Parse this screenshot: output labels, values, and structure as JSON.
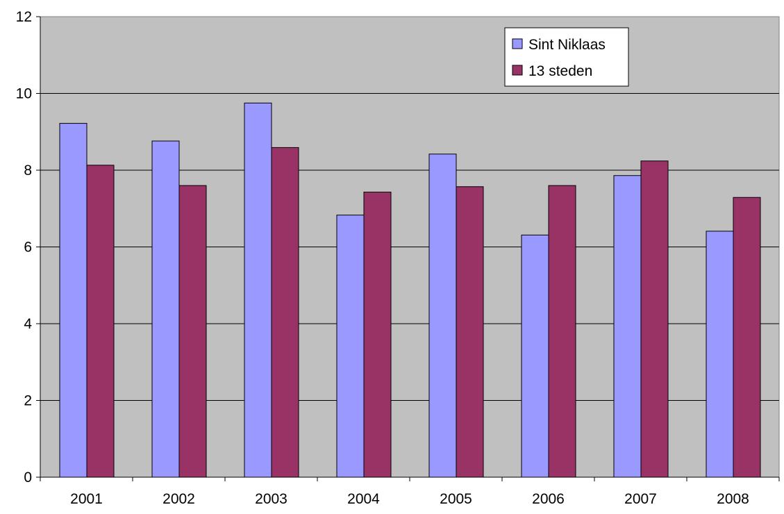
{
  "chart_data": {
    "type": "bar",
    "categories": [
      "2001",
      "2002",
      "2003",
      "2004",
      "2005",
      "2006",
      "2007",
      "2008"
    ],
    "series": [
      {
        "name": "Sint Niklaas",
        "color": "#9999ff",
        "values": [
          9.22,
          8.76,
          9.75,
          6.83,
          8.42,
          6.31,
          7.86,
          6.41
        ]
      },
      {
        "name": "13 steden",
        "color": "#993366",
        "values": [
          8.13,
          7.6,
          8.59,
          7.43,
          7.57,
          7.6,
          8.24,
          7.29
        ]
      }
    ],
    "title": "",
    "xlabel": "",
    "ylabel": "",
    "ylim": [
      0,
      12
    ],
    "yticks": [
      0,
      2,
      4,
      6,
      8,
      10,
      12
    ],
    "grid": true,
    "plot_background": "#c0c0c0",
    "legend_position": "top-right"
  }
}
